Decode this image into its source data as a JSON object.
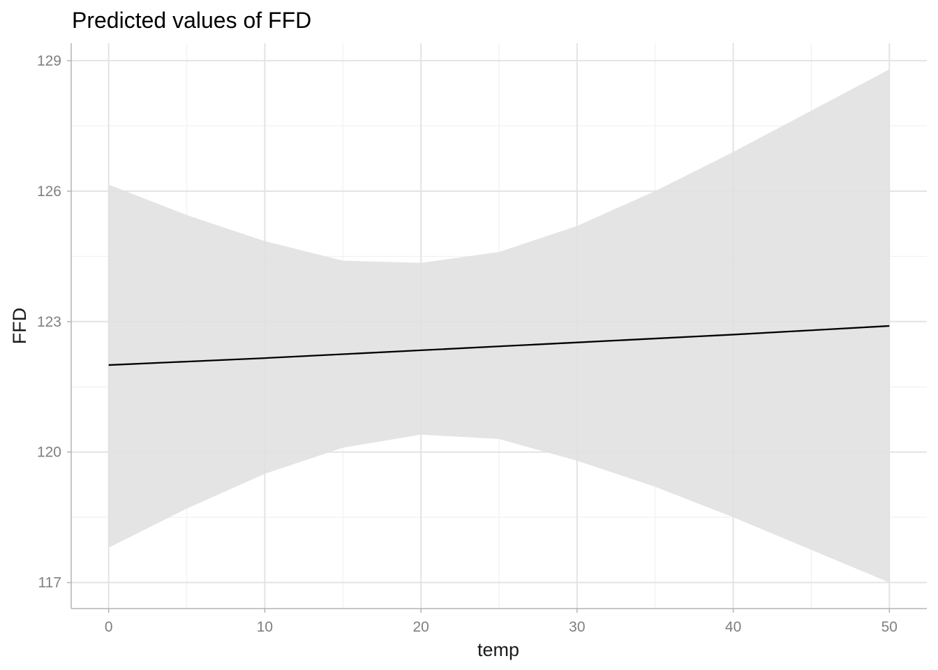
{
  "chart_data": {
    "type": "line",
    "title": "Predicted values of FFD",
    "xlabel": "temp",
    "ylabel": "FFD",
    "xlim": [
      -2.4,
      52.4
    ],
    "ylim": [
      116.4,
      129.4
    ],
    "x_ticks": [
      0,
      10,
      20,
      30,
      40,
      50
    ],
    "x_tick_labels": [
      "0",
      "10",
      "20",
      "30",
      "40",
      "50"
    ],
    "x_minor_ticks": [
      5,
      15,
      25,
      35,
      45
    ],
    "y_ticks": [
      117,
      120,
      123,
      126,
      129
    ],
    "y_tick_labels": [
      "117",
      "120",
      "123",
      "126",
      "129"
    ],
    "y_minor_ticks": [
      118.5,
      121.5,
      124.5,
      127.5
    ],
    "grid": true,
    "series": [
      {
        "x": [
          0,
          5,
          10,
          15,
          20,
          25,
          30,
          35,
          40,
          45,
          50
        ],
        "values": [
          122.0,
          122.08,
          122.16,
          122.25,
          122.34,
          122.43,
          122.52,
          122.61,
          122.7,
          122.8,
          122.9
        ],
        "lower": [
          117.8,
          118.7,
          119.5,
          120.1,
          120.4,
          120.3,
          119.8,
          119.2,
          118.5,
          117.75,
          117.0
        ],
        "upper": [
          126.15,
          125.45,
          124.85,
          124.4,
          124.35,
          124.6,
          125.2,
          126.0,
          126.9,
          127.85,
          128.8
        ]
      }
    ],
    "colors": {
      "line": "#000000",
      "band": "#e0e0e0",
      "grid_major": "#e3e3e3",
      "grid_minor": "#f1f1f1",
      "axis": "#b3b3b3",
      "tick_text": "#7f7f7f"
    }
  }
}
